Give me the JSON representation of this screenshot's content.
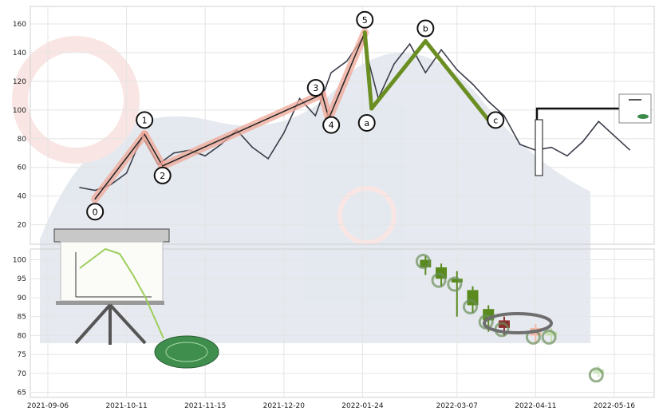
{
  "chart_data": [
    {
      "type": "line",
      "panel": "top",
      "y_ticks": [
        20,
        40,
        60,
        80,
        100,
        120,
        140,
        160
      ],
      "ylim": [
        12,
        170
      ],
      "grid": true,
      "series": [
        {
          "role": "price",
          "color": "#3a3d4a",
          "x": [
            "2021-09-20",
            "2021-09-27",
            "2021-10-04",
            "2021-10-11",
            "2021-10-18",
            "2021-10-25",
            "2021-11-01",
            "2021-11-08",
            "2021-11-15",
            "2021-11-22",
            "2021-11-29",
            "2021-12-06",
            "2021-12-13",
            "2021-12-20",
            "2021-12-27",
            "2022-01-03",
            "2022-01-10",
            "2022-01-17",
            "2022-01-24",
            "2022-01-31",
            "2022-02-07",
            "2022-02-14",
            "2022-02-21",
            "2022-02-28",
            "2022-03-07",
            "2022-03-14",
            "2022-03-21",
            "2022-03-28",
            "2022-04-04",
            "2022-04-11",
            "2022-04-18",
            "2022-04-25",
            "2022-05-02",
            "2022-05-09",
            "2022-05-16",
            "2022-05-23"
          ],
          "values": [
            46,
            44,
            48,
            56,
            82,
            62,
            70,
            72,
            68,
            76,
            86,
            74,
            66,
            84,
            108,
            96,
            126,
            134,
            150,
            108,
            132,
            146,
            126,
            142,
            128,
            118,
            106,
            96,
            76,
            72,
            74,
            68,
            78,
            92,
            82,
            72
          ]
        }
      ],
      "wave_labels": [
        {
          "label": "0",
          "x": "2021-09-27",
          "y": 38
        },
        {
          "label": "1",
          "x": "2021-10-19",
          "y": 83
        },
        {
          "label": "2",
          "x": "2021-10-27",
          "y": 61
        },
        {
          "label": "3",
          "x": "2022-01-06",
          "y": 111
        },
        {
          "label": "4",
          "x": "2022-01-09",
          "y": 94
        },
        {
          "label": "5",
          "x": "2022-01-25",
          "y": 154
        },
        {
          "label": "a",
          "x": "2022-01-28",
          "y": 101
        },
        {
          "label": "b",
          "x": "2022-02-21",
          "y": 148
        },
        {
          "label": "c",
          "x": "2022-03-21",
          "y": 93
        }
      ],
      "impulse_color": "#f0a898",
      "correction_color": "#6b8e23"
    },
    {
      "type": "candlestick",
      "panel": "bottom",
      "x_ticks": [
        "2021-09-06",
        "2021-10-11",
        "2021-11-15",
        "2021-12-20",
        "2022-01-24",
        "2022-03-07",
        "2022-04-11",
        "2022-05-16"
      ],
      "y_ticks": [
        65,
        70,
        75,
        80,
        85,
        90,
        95,
        100
      ],
      "ylim": [
        64.5,
        102
      ],
      "grid": true,
      "candles": [
        {
          "x": "2022-02-21",
          "open": 98,
          "close": 100,
          "high": 101,
          "low": 96,
          "color": "#5a8a1e"
        },
        {
          "x": "2022-02-28",
          "open": 98,
          "close": 95,
          "high": 99,
          "low": 93,
          "color": "#5a8a1e"
        },
        {
          "x": "2022-03-07",
          "open": 95,
          "close": 94,
          "high": 97,
          "low": 85,
          "color": "#5a8a1e"
        },
        {
          "x": "2022-03-14",
          "open": 92,
          "close": 88,
          "high": 93,
          "low": 86,
          "color": "#5a8a1e"
        },
        {
          "x": "2022-03-21",
          "open": 87,
          "close": 84,
          "high": 88,
          "low": 81,
          "color": "#5a8a1e"
        },
        {
          "x": "2022-03-28",
          "open": 84,
          "close": 82,
          "high": 85,
          "low": 80,
          "color": "#8b2e2e"
        },
        {
          "x": "2022-04-11",
          "open": 82,
          "close": 80,
          "high": 83,
          "low": 78,
          "color": "#f4b8a8"
        },
        {
          "x": "2022-04-18",
          "open": 81,
          "close": 80,
          "high": 82,
          "low": 78,
          "color": "#c5deb0"
        },
        {
          "x": "2022-05-09",
          "open": 71,
          "close": 70,
          "high": 72,
          "low": 69,
          "color": "#d0e8c0"
        }
      ],
      "ring_color": "#6b8f5a"
    }
  ]
}
